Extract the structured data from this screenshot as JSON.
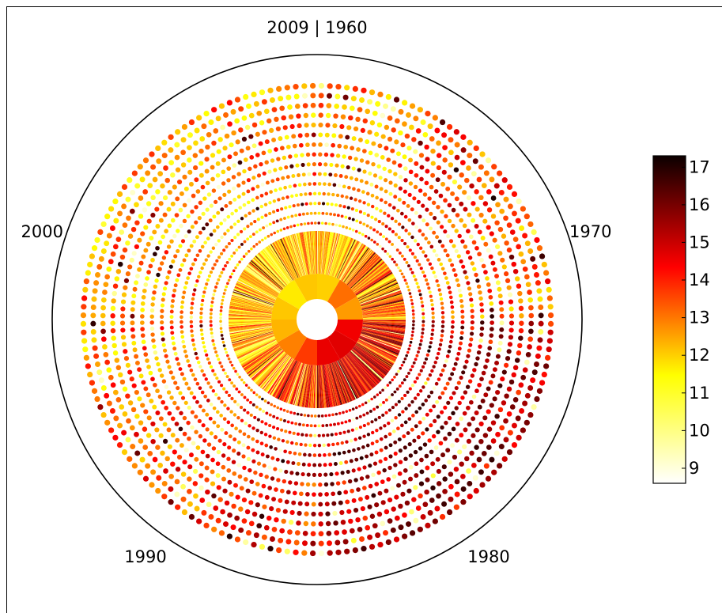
{
  "chart_data": {
    "type": "heatmap",
    "subtype": "polar-radial-heatmap",
    "title": "",
    "angular_labels": [
      "2009 | 1960",
      "1970",
      "1980",
      "1990",
      "2000"
    ],
    "year_range": [
      1960,
      2009
    ],
    "rings": {
      "inner_month_wedges": 12,
      "middle_year_spokes": 50,
      "outer_dot_rings": 15
    },
    "colorbar": {
      "colormap": "hot_r",
      "range": [
        8.6,
        17.3
      ],
      "ticks": [
        "9",
        "10",
        "11",
        "12",
        "13",
        "14",
        "15",
        "16",
        "17"
      ]
    },
    "inner_month_values": [
      12.0,
      13.1,
      12.6,
      14.5,
      14.7,
      14.6,
      13.7,
      12.9,
      12.3,
      12.1,
      11.7,
      12.1
    ],
    "grid": false,
    "legend": "colorbar-right"
  }
}
